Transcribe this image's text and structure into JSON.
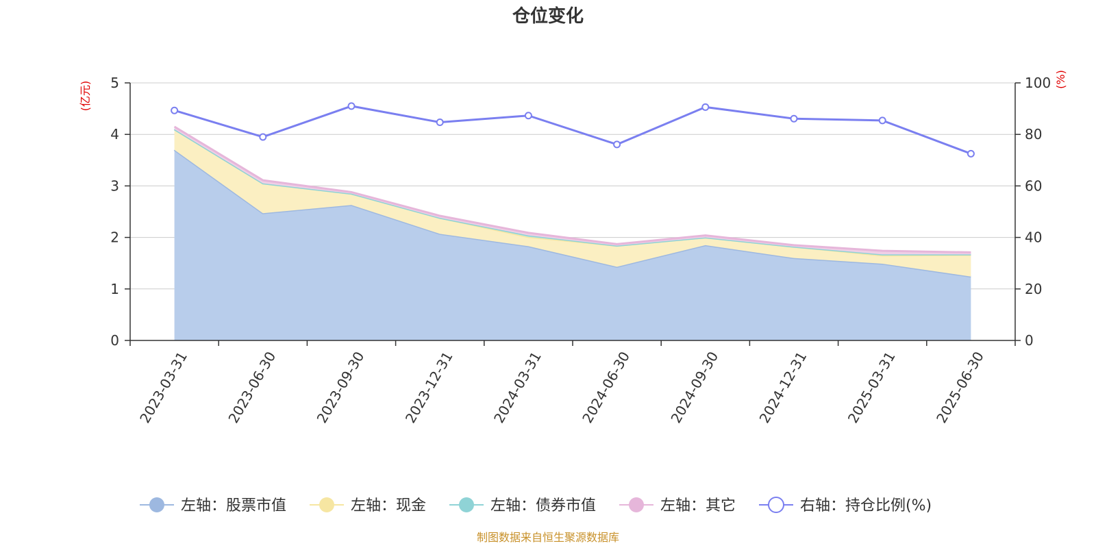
{
  "chart_data": {
    "type": "area",
    "title": "仓位变化",
    "left_axis_unit": "(亿元)",
    "right_axis_unit": "(%)",
    "categories": [
      "2023-03-31",
      "2023-06-30",
      "2023-09-30",
      "2023-12-31",
      "2024-03-31",
      "2024-06-30",
      "2024-09-30",
      "2024-12-31",
      "2025-03-31",
      "2025-06-30"
    ],
    "y_left_ticks": [
      "0",
      "1",
      "2",
      "3",
      "4",
      "5"
    ],
    "y_right_ticks": [
      "0",
      "20",
      "40",
      "60",
      "80",
      "100"
    ],
    "ylim_left": [
      0,
      5
    ],
    "ylim_right": [
      0,
      100
    ],
    "stacked": true,
    "grid": true,
    "legend_position": "bottom",
    "series": [
      {
        "name": "左轴：股票市值",
        "axis": "left",
        "color": "#9db8e0",
        "fill": "#b8cdeb",
        "values": [
          3.7,
          2.47,
          2.63,
          2.07,
          1.83,
          1.43,
          1.85,
          1.6,
          1.49,
          1.24
        ]
      },
      {
        "name": "左轴：现金",
        "axis": "left",
        "color": "#f6e6a2",
        "fill": "#fbefc2",
        "values": [
          0.4,
          0.58,
          0.22,
          0.31,
          0.18,
          0.41,
          0.15,
          0.22,
          0.16,
          0.42
        ]
      },
      {
        "name": "左轴：债券市值",
        "axis": "left",
        "color": "#8fd3d6",
        "fill": "#b4e4e6",
        "values": [
          0.0,
          0.0,
          0.0,
          0.0,
          0.03,
          0.0,
          0.0,
          0.0,
          0.02,
          0.01
        ]
      },
      {
        "name": "左轴：其它",
        "axis": "left",
        "color": "#e6b6da",
        "fill": "#efcfe6",
        "values": [
          0.05,
          0.06,
          0.03,
          0.04,
          0.05,
          0.03,
          0.04,
          0.03,
          0.07,
          0.04
        ]
      },
      {
        "name": "右轴：持仓比例(%)",
        "axis": "right",
        "type": "line",
        "color": "#7a7ff0",
        "values": [
          89.3,
          79.0,
          91.0,
          84.7,
          87.3,
          76.1,
          90.6,
          86.1,
          85.4,
          72.5
        ]
      }
    ],
    "source": "制图数据来自恒生聚源数据库"
  }
}
